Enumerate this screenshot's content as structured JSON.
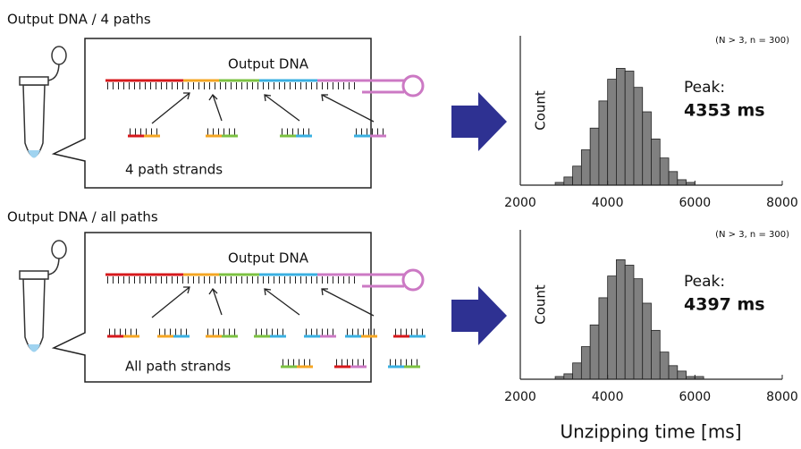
{
  "panels": [
    {
      "title": "Output DNA / 4 paths",
      "diagram_label": "Output DNA",
      "strands_label": "4 path strands"
    },
    {
      "title": "Output DNA / all paths",
      "diagram_label": "Output DNA",
      "strands_label": "All path strands"
    }
  ],
  "chart_data": [
    {
      "type": "histogram",
      "y_label": "Count",
      "annotation": "(N > 3, n = 300)",
      "peak_title": "Peak:",
      "peak_label": "4353 ms",
      "bins": [
        2800,
        3000,
        3200,
        3400,
        3600,
        3800,
        4000,
        4200,
        4400,
        4600,
        4800,
        5000,
        5200,
        5400,
        5600,
        5800,
        6000,
        6200,
        6400
      ],
      "counts": [
        1,
        3,
        7,
        13,
        21,
        31,
        39,
        43,
        42,
        36,
        27,
        17,
        10,
        5,
        2,
        1,
        0,
        0
      ],
      "color": "#808080",
      "xlim": [
        2000,
        8000
      ],
      "xticks": [
        2000,
        4000,
        6000,
        8000
      ],
      "ylim": [
        0,
        55
      ]
    },
    {
      "type": "histogram",
      "y_label": "Count",
      "annotation": "(N > 3, n = 300)",
      "peak_title": "Peak:",
      "peak_label": "4397 ms",
      "x_label": "Unzipping time [ms]",
      "bins": [
        2800,
        3000,
        3200,
        3400,
        3600,
        3800,
        4000,
        4200,
        4400,
        4600,
        4800,
        5000,
        5200,
        5400,
        5600,
        5800,
        6000,
        6200,
        6400
      ],
      "counts": [
        1,
        2,
        6,
        12,
        20,
        30,
        38,
        44,
        42,
        37,
        28,
        18,
        10,
        5,
        3,
        1,
        1,
        0
      ],
      "color": "#808080",
      "xlim": [
        2000,
        8000
      ],
      "xticks": [
        2000,
        4000,
        6000,
        8000
      ],
      "ylim": [
        0,
        55
      ]
    }
  ]
}
